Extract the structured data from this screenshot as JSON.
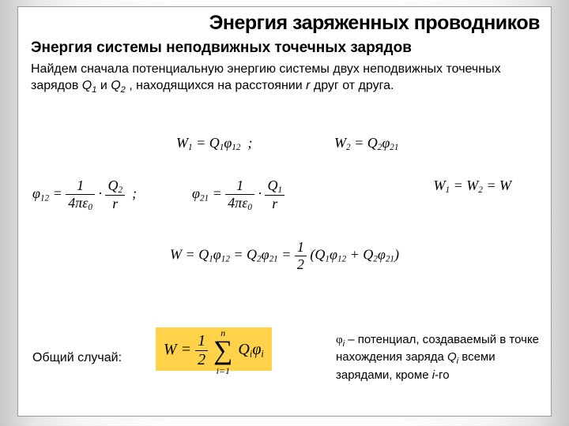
{
  "colors": {
    "page_bg": "#ffffff",
    "border": "#9a9a9a",
    "text": "#000000",
    "highlight_bg": "#ffd24a"
  },
  "typography": {
    "title_size_pt": 19,
    "subtitle_size_pt": 14,
    "body_size_pt": 12,
    "math_size_pt": 14
  },
  "title": "Энергия заряженных проводников",
  "subtitle": "Энергия системы неподвижных точечных зарядов",
  "paragraph": {
    "t1": "Найдем сначала потенциальную энергию системы двух неподвижных точечных зарядов ",
    "q1": "Q",
    "q1s": "1",
    "t2": " и ",
    "q2": "Q",
    "q2s": "2",
    "t3": " , находящихся на расстоянии ",
    "r": "r",
    "t4": " друг от друга."
  },
  "eq_w1": "W₁ = Q₁φ₁₂ ;",
  "eq_w2": "W₂ = Q₂φ₂₁",
  "eq_phi12_lhs": "φ₁₂ =",
  "eq_phi12_sep": ";",
  "eq_phi21_lhs": "φ₂₁ =",
  "frac_1": "1",
  "frac_4pe": "4πε₀",
  "frac_Q2": "Q₂",
  "frac_Q1": "Q₁",
  "frac_r": "r",
  "eq_w_equal": "W₁ = W₂ = W",
  "eq_main_a": "W = Q₁φ₁₂ = Q₂φ₂₁ =",
  "eq_main_half_num": "1",
  "eq_main_half_den": "2",
  "eq_main_b": "(Q₁φ₁₂ + Q₂φ₂₁)",
  "general_label": "Общий случай:",
  "gen_lhs": "W =",
  "gen_half_num": "1",
  "gen_half_den": "2",
  "gen_sum_top": "n",
  "gen_sum_bot": "i=1",
  "gen_term": "Qᵢφᵢ",
  "explain": {
    "phi": "φ",
    "phis": "i",
    "t1": " – потенциал, создаваемый в точке нахождения заряда ",
    "Q": "Q",
    "Qs": "i",
    "t2": " всеми зарядами, кроме ",
    "ii": "i",
    "t3": "-го"
  }
}
